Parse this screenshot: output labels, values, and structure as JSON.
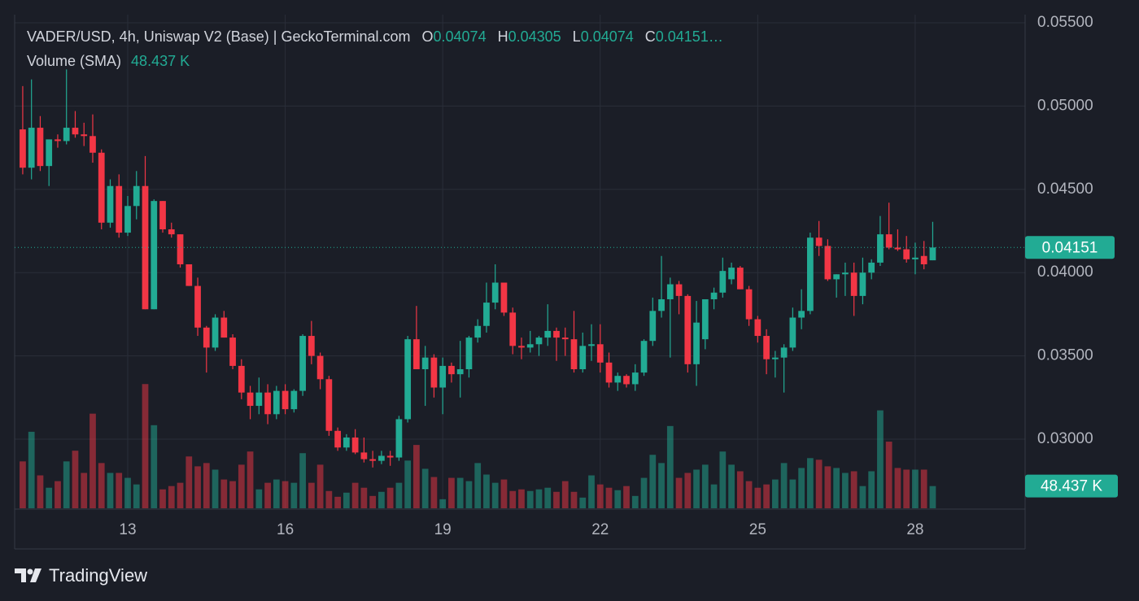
{
  "chart_data": {
    "type": "candlestick",
    "title": "VADER/USD, 4h, Uniswap V2 (Base) | GeckoTerminal.com",
    "ohlc_legend": [
      {
        "label": "O",
        "value": "0.04074"
      },
      {
        "label": "H",
        "value": "0.04305"
      },
      {
        "label": "L",
        "value": "0.04074"
      },
      {
        "label": "C",
        "value": "0.04151…"
      }
    ],
    "volume_label": "Volume (SMA)",
    "volume_value_label": "48.437 K",
    "last_price": 0.04151,
    "up_color": "#22ab94",
    "down_color": "#f23645",
    "grid": true,
    "xlim": [
      10.846,
      30.093
    ],
    "xticks": [
      13,
      16,
      19,
      22,
      25,
      28
    ],
    "ylim": [
      0.02585,
      0.05549
    ],
    "yticks": [
      {
        "value": 0.055,
        "label": "0.05500"
      },
      {
        "value": 0.05,
        "label": "0.05000"
      },
      {
        "value": 0.045,
        "label": "0.04500"
      },
      {
        "value": 0.04,
        "label": "0.04000"
      },
      {
        "value": 0.035,
        "label": "0.03500"
      },
      {
        "value": 0.03,
        "label": "0.03000"
      }
    ],
    "volume_ylim": [
      0,
      600
    ],
    "x": [
      11,
      11.16667,
      11.33333,
      11.5,
      11.66667,
      11.83333,
      12,
      12.16667,
      12.33333,
      12.5,
      12.66667,
      12.83333,
      13,
      13.16667,
      13.33333,
      13.5,
      13.66667,
      13.83333,
      14,
      14.16667,
      14.33333,
      14.5,
      14.66667,
      14.83333,
      15,
      15.16667,
      15.33333,
      15.5,
      15.66667,
      15.83333,
      16,
      16.16667,
      16.33333,
      16.5,
      16.66667,
      16.83333,
      17,
      17.16667,
      17.33333,
      17.5,
      17.66667,
      17.83333,
      18,
      18.16667,
      18.33333,
      18.5,
      18.66667,
      18.83333,
      19,
      19.16667,
      19.33333,
      19.5,
      19.66667,
      19.83333,
      20,
      20.16667,
      20.33333,
      20.5,
      20.66667,
      20.83333,
      21,
      21.16667,
      21.33333,
      21.5,
      21.66667,
      21.83333,
      22,
      22.16667,
      22.33333,
      22.5,
      22.66667,
      22.83333,
      23,
      23.16667,
      23.33333,
      23.5,
      23.66667,
      23.83333,
      24,
      24.16667,
      24.33333,
      24.5,
      24.66667,
      24.83333,
      25,
      25.16667,
      25.33333,
      25.5,
      25.66667,
      25.83333,
      26,
      26.16667,
      26.33333,
      26.5,
      26.66667,
      26.83333,
      27,
      27.16667,
      27.33333,
      27.5,
      27.66667,
      27.83333,
      28,
      28.16667,
      28.33333
    ],
    "open": [
      0.0486,
      0.0463,
      0.0487,
      0.0464,
      0.048,
      0.0479,
      0.0487,
      0.0483,
      0.0482,
      0.0472,
      0.043,
      0.0452,
      0.0424,
      0.044,
      0.0452,
      0.0378,
      0.0443,
      0.0426,
      0.0423,
      0.0405,
      0.0392,
      0.0367,
      0.0355,
      0.0373,
      0.0361,
      0.0344,
      0.0328,
      0.032,
      0.0328,
      0.0315,
      0.0329,
      0.0318,
      0.0329,
      0.0362,
      0.035,
      0.0336,
      0.0305,
      0.0295,
      0.0301,
      0.0292,
      0.0288,
      0.0287,
      0.029,
      0.0289,
      0.0312,
      0.036,
      0.0342,
      0.0349,
      0.0331,
      0.0344,
      0.0339,
      0.0342,
      0.0361,
      0.0368,
      0.0382,
      0.0394,
      0.0376,
      0.0356,
      0.0355,
      0.0357,
      0.0361,
      0.0365,
      0.0361,
      0.036,
      0.0342,
      0.0356,
      0.0357,
      0.0346,
      0.0334,
      0.0338,
      0.0333,
      0.034,
      0.0359,
      0.0377,
      0.0384,
      0.0393,
      0.0386,
      0.0345,
      0.036,
      0.0384,
      0.0388,
      0.0396,
      0.0403,
      0.039,
      0.0372,
      0.0362,
      0.0348,
      0.0349,
      0.0355,
      0.0373,
      0.0377,
      0.0421,
      0.0416,
      0.0396,
      0.0399,
      0.04,
      0.0386,
      0.04,
      0.0406,
      0.0423,
      0.0415,
      0.0414,
      0.0408,
      0.041,
      0.04074
    ],
    "high": [
      0.0512,
      0.0516,
      0.0494,
      0.0478,
      0.0483,
      0.0522,
      0.0497,
      0.049,
      0.0495,
      0.0474,
      0.0456,
      0.0459,
      0.0446,
      0.0461,
      0.047,
      0.0444,
      0.0443,
      0.043,
      0.0423,
      0.0405,
      0.0397,
      0.0368,
      0.0375,
      0.0377,
      0.0363,
      0.0348,
      0.0332,
      0.0337,
      0.0333,
      0.0332,
      0.0333,
      0.033,
      0.0363,
      0.0371,
      0.0352,
      0.0338,
      0.0307,
      0.0303,
      0.0306,
      0.0301,
      0.0293,
      0.0293,
      0.0293,
      0.0314,
      0.0362,
      0.038,
      0.0356,
      0.0351,
      0.0349,
      0.0346,
      0.0359,
      0.0362,
      0.0372,
      0.0394,
      0.0405,
      0.0394,
      0.0379,
      0.0361,
      0.0365,
      0.0362,
      0.0381,
      0.0367,
      0.0367,
      0.0377,
      0.0364,
      0.0369,
      0.0369,
      0.0352,
      0.034,
      0.0339,
      0.0345,
      0.036,
      0.0385,
      0.041,
      0.0397,
      0.0395,
      0.0387,
      0.0383,
      0.0384,
      0.0391,
      0.0409,
      0.0406,
      0.0404,
      0.0392,
      0.0374,
      0.0366,
      0.0353,
      0.0357,
      0.0379,
      0.039,
      0.0424,
      0.0431,
      0.042,
      0.0399,
      0.0406,
      0.0406,
      0.0409,
      0.0408,
      0.0434,
      0.0442,
      0.0426,
      0.0422,
      0.0418,
      0.0419,
      0.04305
    ],
    "low": [
      0.0459,
      0.0456,
      0.0461,
      0.0452,
      0.0475,
      0.0477,
      0.0481,
      0.0476,
      0.0466,
      0.0426,
      0.0427,
      0.0421,
      0.0422,
      0.0432,
      0.0378,
      0.0378,
      0.0424,
      0.0421,
      0.0403,
      0.0392,
      0.0362,
      0.034,
      0.0353,
      0.0361,
      0.0342,
      0.0324,
      0.0312,
      0.0315,
      0.0309,
      0.0312,
      0.0315,
      0.0316,
      0.0326,
      0.0345,
      0.033,
      0.0302,
      0.0293,
      0.0293,
      0.0291,
      0.0286,
      0.0283,
      0.0285,
      0.0284,
      0.0287,
      0.031,
      0.0342,
      0.032,
      0.0325,
      0.0315,
      0.0334,
      0.0325,
      0.0337,
      0.0358,
      0.0364,
      0.0378,
      0.0374,
      0.0351,
      0.0348,
      0.0352,
      0.035,
      0.0356,
      0.0347,
      0.035,
      0.034,
      0.034,
      0.0347,
      0.034,
      0.0331,
      0.0329,
      0.0331,
      0.0329,
      0.0338,
      0.0356,
      0.0373,
      0.0349,
      0.0375,
      0.034,
      0.0332,
      0.0354,
      0.0378,
      0.0385,
      0.0393,
      0.039,
      0.0368,
      0.0358,
      0.0339,
      0.0337,
      0.0328,
      0.0353,
      0.0366,
      0.0375,
      0.041,
      0.0395,
      0.0385,
      0.0386,
      0.0374,
      0.0381,
      0.0396,
      0.0404,
      0.0414,
      0.0413,
      0.0406,
      0.0399,
      0.0402,
      0.04074
    ],
    "close": [
      0.0463,
      0.0487,
      0.0464,
      0.048,
      0.0479,
      0.0487,
      0.0483,
      0.0482,
      0.0472,
      0.043,
      0.0452,
      0.0424,
      0.044,
      0.0452,
      0.0378,
      0.0443,
      0.0426,
      0.0423,
      0.0405,
      0.0392,
      0.0367,
      0.0355,
      0.0373,
      0.0361,
      0.0344,
      0.0328,
      0.032,
      0.0328,
      0.0315,
      0.0329,
      0.0318,
      0.0329,
      0.0362,
      0.035,
      0.0336,
      0.0305,
      0.0295,
      0.0301,
      0.0292,
      0.0288,
      0.0287,
      0.029,
      0.0289,
      0.0312,
      0.036,
      0.0342,
      0.0349,
      0.0331,
      0.0344,
      0.0339,
      0.0342,
      0.0361,
      0.0368,
      0.0382,
      0.0394,
      0.0376,
      0.0356,
      0.0355,
      0.0357,
      0.0361,
      0.0365,
      0.0361,
      0.036,
      0.0342,
      0.0356,
      0.0357,
      0.0346,
      0.0334,
      0.0338,
      0.0333,
      0.034,
      0.0359,
      0.0377,
      0.0384,
      0.0393,
      0.0386,
      0.0345,
      0.037,
      0.0384,
      0.0388,
      0.0401,
      0.0403,
      0.039,
      0.0372,
      0.0362,
      0.0348,
      0.0349,
      0.0355,
      0.0373,
      0.0377,
      0.0421,
      0.0416,
      0.0396,
      0.0399,
      0.04,
      0.0386,
      0.04,
      0.0406,
      0.0423,
      0.0415,
      0.0414,
      0.0408,
      0.0409,
      0.0405,
      0.04151
    ],
    "volume": [
      57,
      93,
      40,
      25,
      33,
      57,
      70,
      43,
      115,
      55,
      43,
      43,
      37,
      29,
      151,
      101,
      23,
      27,
      31,
      63,
      51,
      55,
      47,
      35,
      33,
      53,
      69,
      23,
      31,
      35,
      33,
      31,
      67,
      31,
      53,
      21,
      14,
      19,
      31,
      25,
      15,
      20,
      25,
      31,
      58,
      77,
      48,
      38,
      11,
      37,
      37,
      33,
      55,
      41,
      31,
      35,
      21,
      23,
      21,
      23,
      25,
      20,
      33,
      20,
      13,
      40,
      29,
      25,
      22,
      27,
      15,
      37,
      65,
      55,
      100,
      37,
      43,
      47,
      53,
      29,
      69,
      53,
      45,
      33,
      25,
      29,
      35,
      55,
      35,
      49,
      61,
      59,
      51,
      49,
      43,
      45,
      27,
      45,
      119,
      81,
      49,
      47,
      47,
      47,
      27
    ]
  },
  "brand": "TradingView"
}
